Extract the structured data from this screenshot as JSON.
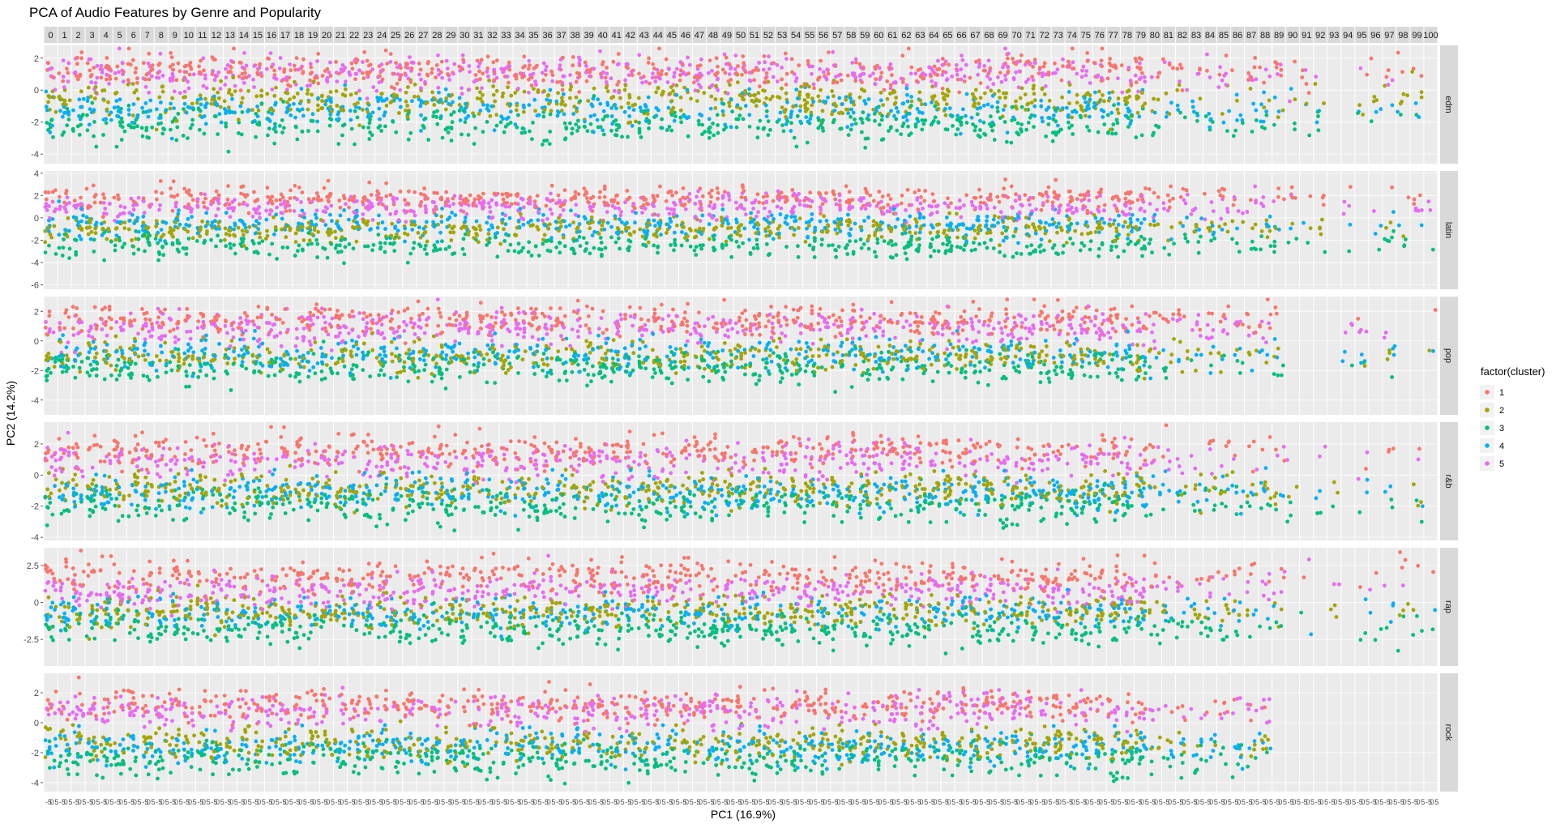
{
  "chart_data": {
    "type": "scatter",
    "title": "PCA of Audio Features by Genre and Popularity",
    "xlabel": "PC1 (16.9%)",
    "ylabel": "PC2 (14.2%)",
    "popularity_facets": [
      "0",
      "1",
      "2",
      "3",
      "4",
      "5",
      "6",
      "7",
      "8",
      "9",
      "10",
      "11",
      "12",
      "13",
      "14",
      "15",
      "16",
      "17",
      "18",
      "19",
      "20",
      "21",
      "22",
      "23",
      "24",
      "25",
      "26",
      "27",
      "28",
      "29",
      "30",
      "31",
      "32",
      "33",
      "34",
      "35",
      "36",
      "37",
      "38",
      "39",
      "40",
      "41",
      "42",
      "43",
      "44",
      "45",
      "46",
      "47",
      "48",
      "49",
      "50",
      "51",
      "52",
      "53",
      "54",
      "55",
      "56",
      "57",
      "58",
      "59",
      "60",
      "61",
      "62",
      "63",
      "64",
      "65",
      "66",
      "67",
      "68",
      "69",
      "70",
      "71",
      "72",
      "73",
      "74",
      "75",
      "76",
      "77",
      "78",
      "79",
      "80",
      "81",
      "82",
      "83",
      "84",
      "85",
      "86",
      "87",
      "88",
      "89",
      "90",
      "91",
      "92",
      "93",
      "94",
      "95",
      "96",
      "97",
      "98",
      "99",
      "100"
    ],
    "genres": [
      {
        "name": "edm",
        "ylim": [
          -4.6,
          2.8
        ],
        "yticks": [
          2,
          0,
          -2,
          -4
        ]
      },
      {
        "name": "latin",
        "ylim": [
          -6.4,
          4.2
        ],
        "yticks": [
          4,
          2,
          0,
          -2,
          -4,
          -6
        ]
      },
      {
        "name": "pop",
        "ylim": [
          -5.0,
          3.0
        ],
        "yticks": [
          2,
          0,
          -2,
          -4
        ]
      },
      {
        "name": "r&b",
        "ylim": [
          -4.2,
          3.4
        ],
        "yticks": [
          2,
          0,
          -2,
          -4
        ]
      },
      {
        "name": "rap",
        "ylim": [
          -4.3,
          3.7
        ],
        "yticks": [
          2.5,
          0.0,
          -2.5
        ]
      },
      {
        "name": "rock",
        "ylim": [
          -4.6,
          3.3
        ],
        "yticks": [
          2,
          0,
          -2,
          -4
        ]
      }
    ],
    "legend": {
      "title": "factor(cluster)",
      "position": "right",
      "entries": [
        {
          "label": "1",
          "color": "#F8766D"
        },
        {
          "label": "2",
          "color": "#A3A500"
        },
        {
          "label": "3",
          "color": "#00BF7D"
        },
        {
          "label": "4",
          "color": "#00B0F6"
        },
        {
          "label": "5",
          "color": "#E76BF3"
        }
      ]
    },
    "cluster_centers_pc2": {
      "edm": [
        1.2,
        -0.6,
        -2.2,
        -1.2,
        1.0
      ],
      "latin": [
        1.8,
        -1.0,
        -2.5,
        -0.6,
        1.0
      ],
      "pop": [
        1.5,
        -1.0,
        -1.8,
        -0.9,
        0.9
      ],
      "r&b": [
        1.6,
        -0.9,
        -2.0,
        -1.1,
        0.9
      ],
      "rap": [
        1.8,
        -0.6,
        -1.8,
        -0.7,
        0.8
      ],
      "rock": [
        1.2,
        -1.4,
        -2.5,
        -1.6,
        0.8
      ]
    },
    "grid": true
  }
}
